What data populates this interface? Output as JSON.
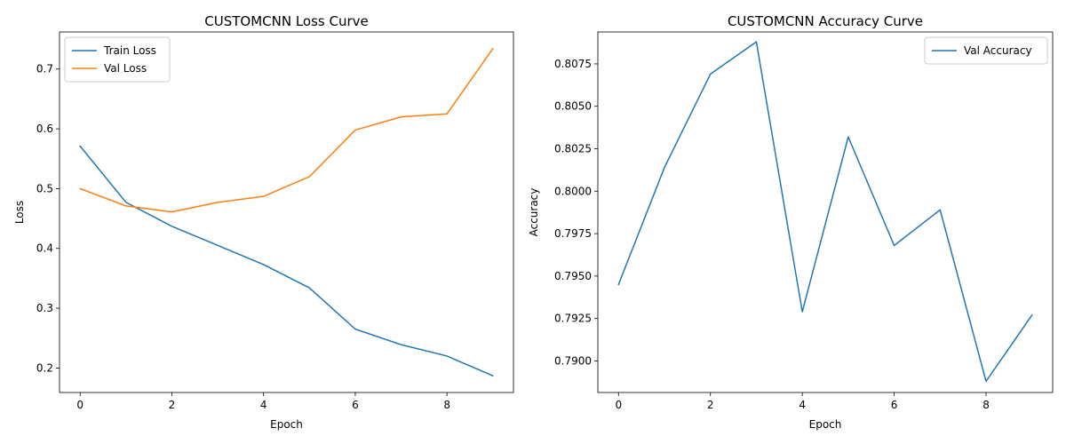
{
  "chart_data": [
    {
      "type": "line",
      "title": "CUSTOMCNN Loss Curve",
      "xlabel": "Epoch",
      "ylabel": "Loss",
      "x": [
        0,
        1,
        2,
        3,
        4,
        5,
        6,
        7,
        8,
        9
      ],
      "xlim": [
        -0.45,
        9.45
      ],
      "ylim": [
        0.159,
        0.762
      ],
      "xticks": [
        0,
        2,
        4,
        6,
        8
      ],
      "yticks": [
        0.2,
        0.3,
        0.4,
        0.5,
        0.6,
        0.7
      ],
      "ytick_labels": [
        "0.2",
        "0.3",
        "0.4",
        "0.5",
        "0.6",
        "0.7"
      ],
      "legend": "upper left",
      "series": [
        {
          "name": "Train Loss",
          "color": "#1f77b4",
          "values": [
            0.571,
            0.477,
            0.437,
            0.405,
            0.373,
            0.334,
            0.265,
            0.239,
            0.22,
            0.187
          ]
        },
        {
          "name": "Val Loss",
          "color": "#ff7f0e",
          "values": [
            0.5,
            0.471,
            0.461,
            0.477,
            0.487,
            0.52,
            0.598,
            0.62,
            0.625,
            0.734
          ]
        }
      ]
    },
    {
      "type": "line",
      "title": "CUSTOMCNN Accuracy Curve",
      "xlabel": "Epoch",
      "ylabel": "Accuracy",
      "x": [
        0,
        1,
        2,
        3,
        4,
        5,
        6,
        7,
        8,
        9
      ],
      "xlim": [
        -0.45,
        9.45
      ],
      "ylim": [
        0.78814,
        0.80938
      ],
      "xticks": [
        0,
        2,
        4,
        6,
        8
      ],
      "yticks": [
        0.79,
        0.7925,
        0.795,
        0.7975,
        0.8,
        0.8025,
        0.805,
        0.8075
      ],
      "ytick_labels": [
        "0.7900",
        "0.7925",
        "0.7950",
        "0.7975",
        "0.8000",
        "0.8025",
        "0.8050",
        "0.8075"
      ],
      "legend": "upper right",
      "series": [
        {
          "name": "Val Accuracy",
          "color": "#1f77b4",
          "values": [
            0.7945,
            0.8014,
            0.8069,
            0.8088,
            0.7929,
            0.8032,
            0.7968,
            0.7989,
            0.7888,
            0.7927
          ]
        }
      ]
    }
  ]
}
